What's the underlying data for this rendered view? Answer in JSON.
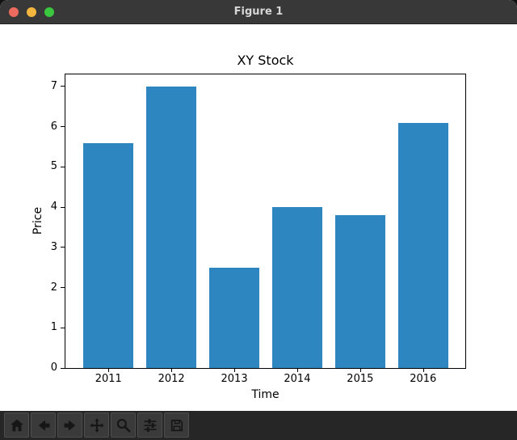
{
  "window": {
    "title": "Figure 1",
    "titlebar_color": "#383838",
    "title_color": "#d6d6d6",
    "traffic_lights": {
      "close": "#ed6a5e",
      "minimize": "#f4b63f",
      "zoom": "#3bc63f"
    }
  },
  "chart_data": {
    "type": "bar",
    "title": "XY Stock",
    "xlabel": "Time",
    "ylabel": "Price",
    "categories": [
      "2011",
      "2012",
      "2013",
      "2014",
      "2015",
      "2016"
    ],
    "values": [
      5.6,
      7.0,
      2.5,
      4.0,
      3.8,
      6.1
    ],
    "yticks": [
      0,
      1,
      2,
      3,
      4,
      5,
      6,
      7
    ],
    "ylim": [
      0,
      7.3
    ],
    "bar_color": "#2e86c1",
    "axes_color": "#000000",
    "background": "#ffffff",
    "grid": false,
    "legend": null
  },
  "toolbar": {
    "background": "#262626",
    "button_background": "#3a3a3a",
    "icon_color": "#161616",
    "buttons": [
      {
        "name": "home",
        "icon": "home-icon"
      },
      {
        "name": "back",
        "icon": "back-icon"
      },
      {
        "name": "forward",
        "icon": "forward-icon"
      },
      {
        "name": "pan",
        "icon": "pan-icon"
      },
      {
        "name": "zoom",
        "icon": "zoom-icon"
      },
      {
        "name": "subplots",
        "icon": "subplots-icon"
      },
      {
        "name": "save",
        "icon": "save-icon"
      }
    ]
  }
}
